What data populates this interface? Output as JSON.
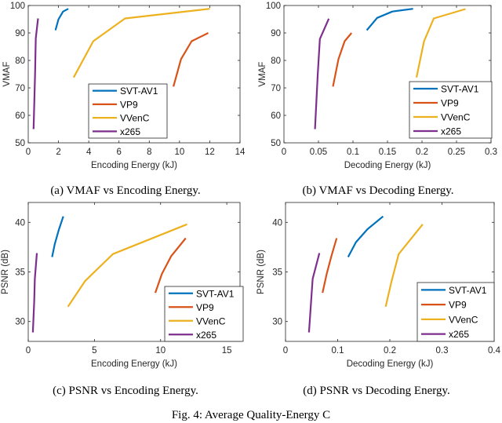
{
  "figure_caption": "Fig. 4: Average Quality-Energy C",
  "colors": {
    "SVT-AV1": "#0072BD",
    "VP9": "#D95319",
    "VVenC": "#EDB120",
    "x265": "#7E2F8E"
  },
  "chart_data": [
    {
      "type": "line",
      "caption": "(a) VMAF vs Encoding Energy.",
      "xlabel": "Encoding Energy (kJ)",
      "ylabel": "VMAF",
      "xlim": [
        0,
        14
      ],
      "ylim": [
        50,
        100
      ],
      "xticks": [
        "0",
        "2",
        "4",
        "6",
        "8",
        "10",
        "12",
        "14"
      ],
      "xtick_values": [
        0,
        2,
        4,
        6,
        8,
        10,
        12,
        14
      ],
      "yticks": [
        "50",
        "60",
        "70",
        "80",
        "90",
        "100"
      ],
      "ytick_values": [
        50,
        60,
        70,
        80,
        90,
        100
      ],
      "grid": false,
      "legend": "bottom-center",
      "series": [
        {
          "name": "SVT-AV1",
          "x": [
            1.8,
            2.0,
            2.3,
            2.65
          ],
          "y": [
            91,
            95,
            97.8,
            98.8
          ]
        },
        {
          "name": "VP9",
          "x": [
            9.6,
            10.1,
            10.8,
            11.9
          ],
          "y": [
            70.5,
            80.5,
            87,
            90
          ]
        },
        {
          "name": "VVenC",
          "x": [
            3.0,
            4.3,
            6.4,
            12.0
          ],
          "y": [
            73.8,
            87,
            95.3,
            98.8
          ]
        },
        {
          "name": "x265",
          "x": [
            0.35,
            0.45,
            0.5,
            0.65
          ],
          "y": [
            55,
            75,
            88,
            95.3
          ]
        }
      ]
    },
    {
      "type": "line",
      "caption": "(b) VMAF vs Decoding Energy.",
      "xlabel": "Decoding Energy (kJ)",
      "ylabel": "VMAF",
      "xlim": [
        0,
        0.3
      ],
      "ylim": [
        50,
        100
      ],
      "xticks": [
        "0",
        "0.05",
        "0.1",
        "0.15",
        "0.2",
        "0.25",
        "0.3"
      ],
      "xtick_values": [
        0,
        0.05,
        0.1,
        0.15,
        0.2,
        0.25,
        0.3
      ],
      "yticks": [
        "50",
        "60",
        "70",
        "80",
        "90",
        "100"
      ],
      "ytick_values": [
        50,
        60,
        70,
        80,
        90,
        100
      ],
      "grid": false,
      "legend": "bottom-right",
      "series": [
        {
          "name": "SVT-AV1",
          "x": [
            0.12,
            0.135,
            0.157,
            0.187
          ],
          "y": [
            91,
            95.5,
            97.8,
            98.8
          ]
        },
        {
          "name": "VP9",
          "x": [
            0.071,
            0.079,
            0.088,
            0.098
          ],
          "y": [
            70.5,
            80.5,
            87,
            90
          ]
        },
        {
          "name": "VVenC",
          "x": [
            0.192,
            0.203,
            0.217,
            0.263
          ],
          "y": [
            73.8,
            87,
            95.3,
            98.7
          ]
        },
        {
          "name": "x265",
          "x": [
            0.045,
            0.049,
            0.052,
            0.065
          ],
          "y": [
            55,
            75,
            87.8,
            95.2
          ]
        }
      ]
    },
    {
      "type": "line",
      "caption": "(c) PSNR vs Encoding Energy.",
      "xlabel": "Encoding Energy (kJ)",
      "ylabel": "PSNR (dB)",
      "xlim": [
        0,
        16
      ],
      "ylim": [
        28,
        42
      ],
      "xticks": [
        "0",
        "5",
        "10",
        "15"
      ],
      "xtick_values": [
        0,
        5,
        10,
        15
      ],
      "yticks": [
        "30",
        "35",
        "40"
      ],
      "ytick_values": [
        30,
        35,
        40
      ],
      "grid": false,
      "legend": "bottom-right",
      "series": [
        {
          "name": "SVT-AV1",
          "x": [
            1.8,
            2.0,
            2.3,
            2.65
          ],
          "y": [
            36.5,
            37.8,
            39.2,
            40.6
          ]
        },
        {
          "name": "VP9",
          "x": [
            9.6,
            10.1,
            10.8,
            11.9
          ],
          "y": [
            32.9,
            34.8,
            36.6,
            38.4
          ]
        },
        {
          "name": "VVenC",
          "x": [
            3.0,
            4.3,
            6.4,
            12.0
          ],
          "y": [
            31.5,
            34.1,
            36.8,
            39.8
          ]
        },
        {
          "name": "x265",
          "x": [
            0.35,
            0.45,
            0.5,
            0.65
          ],
          "y": [
            28.9,
            32,
            34.3,
            36.9
          ]
        }
      ]
    },
    {
      "type": "line",
      "caption": "(d) PSNR vs Decoding Energy.",
      "xlabel": "Decoding Energy (kJ)",
      "ylabel": "PSNR (dB)",
      "xlim": [
        0,
        0.4
      ],
      "ylim": [
        28,
        42
      ],
      "xticks": [
        "0",
        "0.1",
        "0.2",
        "0.3",
        "0.4"
      ],
      "xtick_values": [
        0,
        0.1,
        0.2,
        0.3,
        0.4
      ],
      "yticks": [
        "30",
        "35",
        "40"
      ],
      "ytick_values": [
        30,
        35,
        40
      ],
      "grid": false,
      "legend": "bottom-right",
      "series": [
        {
          "name": "SVT-AV1",
          "x": [
            0.12,
            0.135,
            0.157,
            0.187
          ],
          "y": [
            36.5,
            38,
            39.3,
            40.6
          ]
        },
        {
          "name": "VP9",
          "x": [
            0.071,
            0.079,
            0.088,
            0.098
          ],
          "y": [
            32.9,
            34.8,
            36.6,
            38.4
          ]
        },
        {
          "name": "VVenC",
          "x": [
            0.192,
            0.203,
            0.217,
            0.263
          ],
          "y": [
            31.5,
            34,
            36.8,
            39.8
          ]
        },
        {
          "name": "x265",
          "x": [
            0.045,
            0.049,
            0.052,
            0.065
          ],
          "y": [
            28.9,
            32,
            34.3,
            36.9
          ]
        }
      ]
    }
  ]
}
